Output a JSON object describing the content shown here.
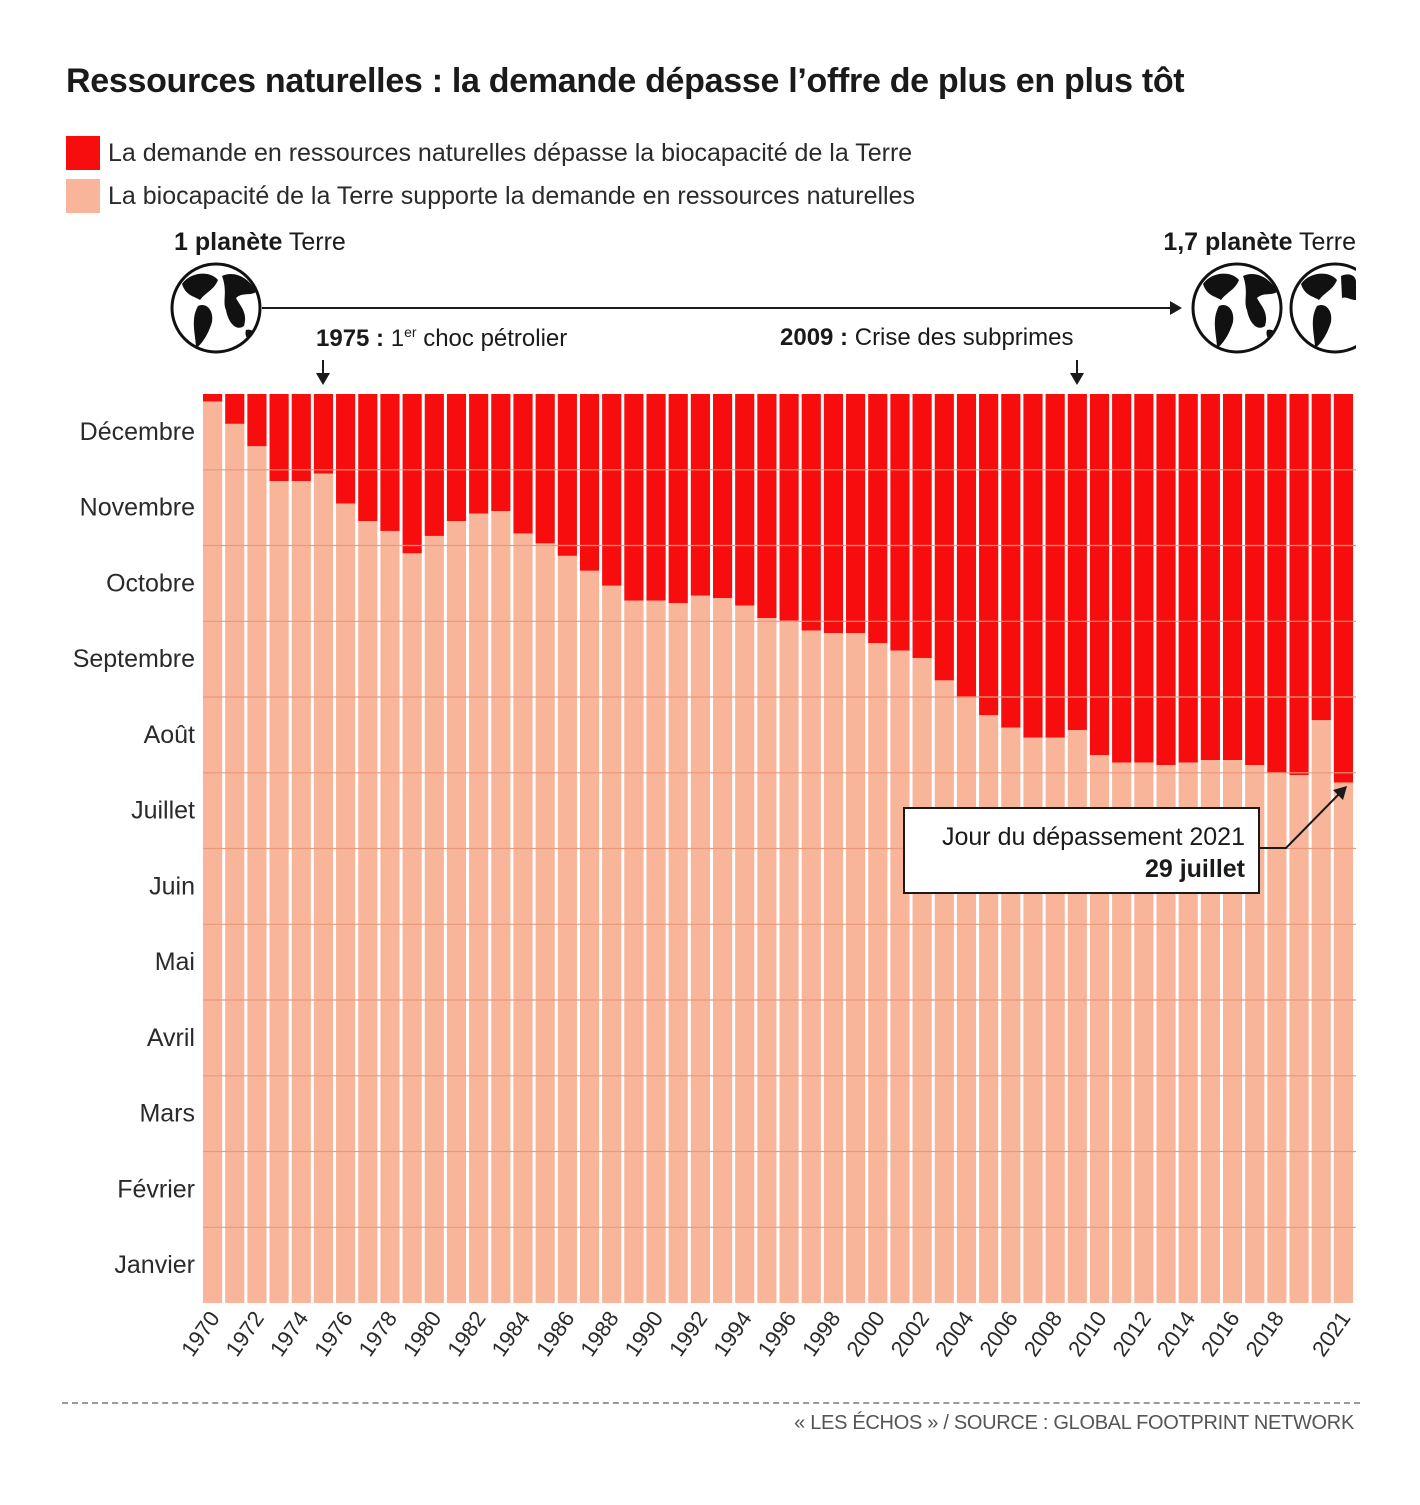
{
  "title": "Ressources naturelles : la demande dépasse l’offre de plus en plus tôt",
  "legend": [
    {
      "label": "La demande en ressources naturelles dépasse la biocapacité de la Terre",
      "color": "#f70d0d"
    },
    {
      "label": "La biocapacité de la Terre supporte la demande en ressources naturelles",
      "color": "#f8b59a"
    }
  ],
  "planets": {
    "left": {
      "bold": "1 planète",
      "rest": " Terre",
      "globe_icon": "earth-globe-icon"
    },
    "right": {
      "bold": "1,7 planète",
      "rest": " Terre",
      "globe_icon": "earth-globe-icon"
    }
  },
  "events": [
    {
      "year_bold": "1975 :",
      "text_pre": " 1",
      "sup": "er",
      "text_post": " choc pétrolier",
      "year": 1975
    },
    {
      "year_bold": "2009 :",
      "text_pre": " Crise des subprimes",
      "sup": "",
      "text_post": "",
      "year": 2009
    }
  ],
  "callout": {
    "line1": "Jour du dépassement 2021",
    "line2": "29 juillet"
  },
  "credit": "« LES ÉCHOS » / SOURCE : GLOBAL FOOTPRINT NETWORK",
  "chart_data": {
    "type": "bar",
    "stacked": true,
    "unit": "day of year (Earth Overshoot Day)",
    "ylim": [
      1,
      365
    ],
    "y_tick_labels": [
      "Janvier",
      "Février",
      "Mars",
      "Avril",
      "Mai",
      "Juin",
      "Juillet",
      "Août",
      "Septembre",
      "Octobre",
      "Novembre",
      "Décembre"
    ],
    "x_tick_labels": [
      "1970",
      "1972",
      "1974",
      "1976",
      "1978",
      "1980",
      "1982",
      "1984",
      "1986",
      "1988",
      "1990",
      "1992",
      "1994",
      "1996",
      "1998",
      "2000",
      "2002",
      "2004",
      "2006",
      "2008",
      "2010",
      "2012",
      "2014",
      "2016",
      "2018",
      "2021"
    ],
    "categories": [
      1970,
      1971,
      1972,
      1973,
      1974,
      1975,
      1976,
      1977,
      1978,
      1979,
      1980,
      1981,
      1982,
      1983,
      1984,
      1985,
      1986,
      1987,
      1988,
      1989,
      1990,
      1991,
      1992,
      1993,
      1994,
      1995,
      1996,
      1997,
      1998,
      1999,
      2000,
      2001,
      2002,
      2003,
      2004,
      2005,
      2006,
      2007,
      2008,
      2009,
      2010,
      2011,
      2012,
      2013,
      2014,
      2015,
      2016,
      2017,
      2018,
      2019,
      2020,
      2021
    ],
    "series": [
      {
        "name": "La biocapacité de la Terre supporte la demande en ressources naturelles",
        "color": "#f8b59a",
        "values": [
          362,
          353,
          344,
          330,
          330,
          333,
          321,
          314,
          310,
          301,
          308,
          314,
          317,
          318,
          309,
          305,
          300,
          294,
          288,
          282,
          282,
          281,
          284,
          283,
          280,
          275,
          274,
          270,
          269,
          269,
          265,
          262,
          259,
          250,
          243,
          236,
          231,
          227,
          227,
          230,
          220,
          217,
          217,
          216,
          217,
          218,
          218,
          216,
          213,
          212,
          234,
          209
        ]
      },
      {
        "name": "La demande en ressources naturelles dépasse la biocapacité de la Terre",
        "color": "#f70d0d",
        "values": [
          3,
          12,
          21,
          35,
          35,
          32,
          44,
          51,
          55,
          64,
          57,
          51,
          48,
          47,
          56,
          60,
          65,
          71,
          77,
          83,
          83,
          84,
          81,
          82,
          85,
          90,
          91,
          95,
          96,
          96,
          100,
          103,
          106,
          115,
          122,
          129,
          134,
          138,
          138,
          135,
          145,
          148,
          148,
          149,
          148,
          147,
          147,
          149,
          152,
          153,
          131,
          156
        ]
      }
    ],
    "annotations": [
      "1975 : 1er choc pétrolier",
      "2009 : Crise des subprimes",
      "Jour du dépassement 2021 29 juillet"
    ]
  }
}
